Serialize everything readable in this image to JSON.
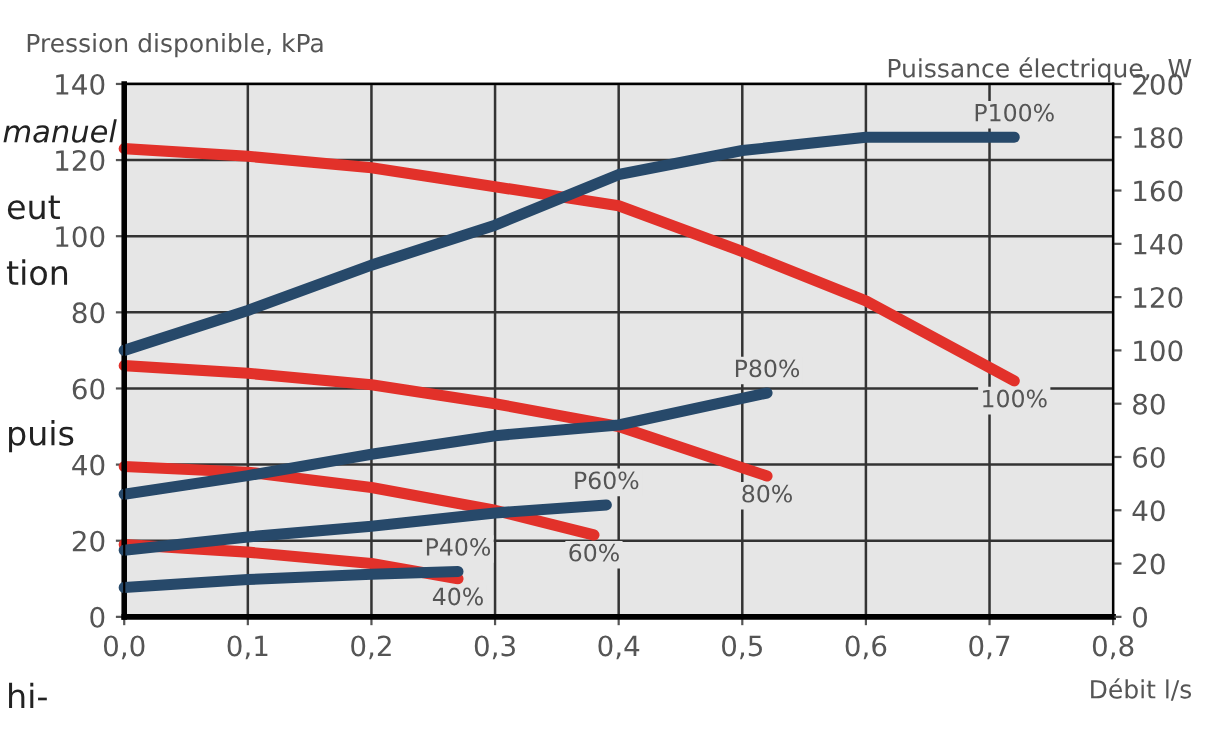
{
  "chart_data": {
    "type": "line",
    "ylabel": "Pression disponible, kPa",
    "y2label": "Puissance électrique,  W",
    "xlabel": "Débit l/s",
    "xlim": [
      0,
      0.8
    ],
    "xticks": [
      {
        "value": 0,
        "label": "0,0"
      },
      {
        "value": 0.1,
        "label": "0,1"
      },
      {
        "value": 0.2,
        "label": "0,2"
      },
      {
        "value": 0.3,
        "label": "0,3"
      },
      {
        "value": 0.4,
        "label": "0,4"
      },
      {
        "value": 0.5,
        "label": "0,5"
      },
      {
        "value": 0.6,
        "label": "0,6"
      },
      {
        "value": 0.7,
        "label": "0,7"
      },
      {
        "value": 0.8,
        "label": "0,8"
      }
    ],
    "ylim": [
      0,
      140
    ],
    "yticks": [
      0,
      20,
      40,
      60,
      80,
      100,
      120,
      140
    ],
    "y2lim": [
      0,
      200
    ],
    "y2ticks": [
      0,
      20,
      40,
      60,
      80,
      100,
      120,
      140,
      160,
      180,
      200
    ],
    "grid": true,
    "legend": false,
    "marker": "none",
    "line_style": "solid",
    "series": [
      {
        "name": "P100%",
        "color": "#27496a",
        "axis": "y2",
        "x": [
          0,
          0.1,
          0.2,
          0.3,
          0.4,
          0.5,
          0.6,
          0.72
        ],
        "values": [
          100,
          115,
          132,
          147,
          166,
          175,
          180,
          180
        ]
      },
      {
        "name": "100%",
        "color": "#e2312a",
        "x": [
          0,
          0.1,
          0.2,
          0.3,
          0.4,
          0.5,
          0.6,
          0.72
        ],
        "values": [
          123,
          121,
          118,
          113,
          108,
          96,
          83,
          62
        ]
      },
      {
        "name": "P80%",
        "color": "#27496a",
        "axis": "y2",
        "x": [
          0,
          0.1,
          0.2,
          0.3,
          0.4,
          0.52
        ],
        "values": [
          46,
          53,
          61,
          68,
          72,
          84
        ]
      },
      {
        "name": "80%",
        "color": "#e2312a",
        "x": [
          0,
          0.1,
          0.2,
          0.3,
          0.4,
          0.52
        ],
        "values": [
          66,
          64,
          61,
          56,
          50,
          37
        ]
      },
      {
        "name": "P60%",
        "color": "#27496a",
        "axis": "y2",
        "x": [
          0,
          0.1,
          0.2,
          0.3,
          0.39
        ],
        "values": [
          25,
          30,
          34,
          39,
          42
        ]
      },
      {
        "name": "60%",
        "color": "#e2312a",
        "x": [
          0,
          0.1,
          0.2,
          0.3,
          0.38
        ],
        "values": [
          39.5,
          38,
          34,
          28,
          21.5
        ]
      },
      {
        "name": "P40%",
        "color": "#27496a",
        "axis": "y2",
        "x": [
          0,
          0.1,
          0.2,
          0.27
        ],
        "values": [
          11,
          14,
          16,
          17
        ]
      },
      {
        "name": "40%",
        "color": "#e2312a",
        "x": [
          0,
          0.1,
          0.2,
          0.27
        ],
        "values": [
          19,
          17,
          14,
          10
        ]
      }
    ],
    "annotations": [
      "manuel",
      "eut",
      "tion",
      "puis",
      "hi-"
    ]
  }
}
